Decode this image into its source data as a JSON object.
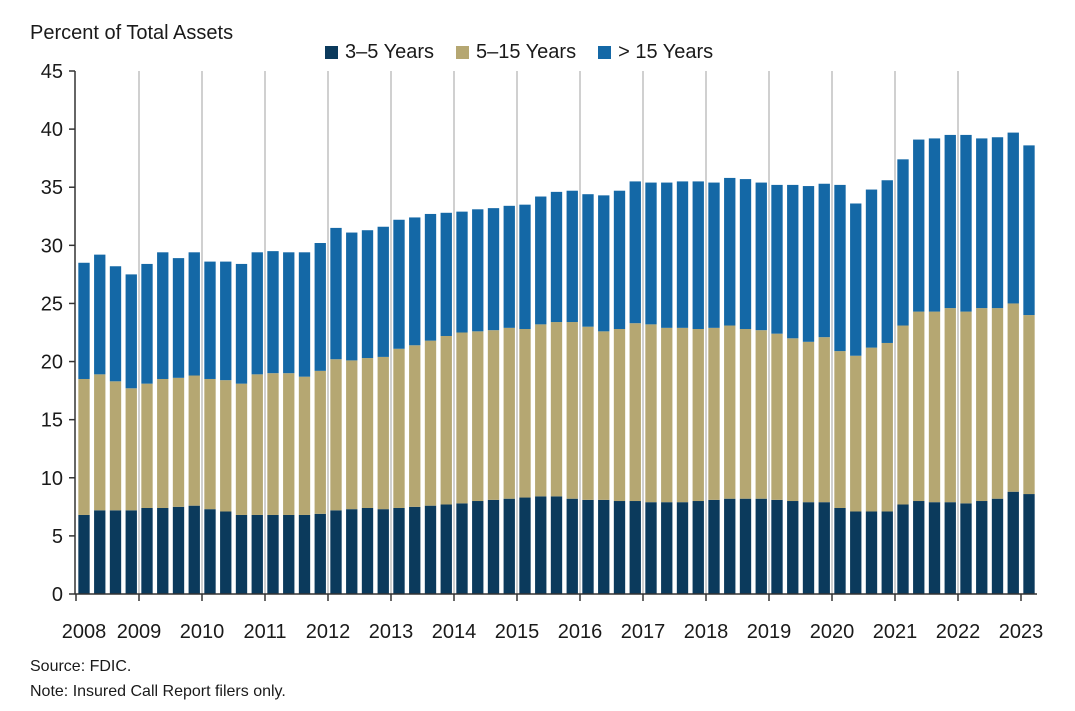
{
  "chart_data": {
    "type": "bar",
    "stacked": true,
    "ylabel": "Percent of Total Assets",
    "ylim": [
      0,
      45
    ],
    "yticks": [
      0,
      5,
      10,
      15,
      20,
      25,
      30,
      35,
      40,
      45
    ],
    "xtick_labels": [
      "2008",
      "2009",
      "2010",
      "2011",
      "2012",
      "2013",
      "2014",
      "2015",
      "2016",
      "2017",
      "2018",
      "2019",
      "2020",
      "2021",
      "2022",
      "2023"
    ],
    "x_start_year": 2008,
    "periods_per_year": 4,
    "grid": "vertical lines at each year",
    "legend_position": "top-center",
    "series": [
      {
        "name": "3–5 Years",
        "color": "#0b3a5c",
        "values": [
          6.8,
          7.2,
          7.2,
          7.2,
          7.4,
          7.4,
          7.5,
          7.6,
          7.3,
          7.1,
          6.8,
          6.8,
          6.8,
          6.8,
          6.8,
          6.9,
          7.2,
          7.3,
          7.4,
          7.3,
          7.4,
          7.5,
          7.6,
          7.7,
          7.8,
          8.0,
          8.1,
          8.2,
          8.3,
          8.4,
          8.4,
          8.2,
          8.1,
          8.1,
          8.0,
          8.0,
          7.9,
          7.9,
          7.9,
          8.0,
          8.1,
          8.2,
          8.2,
          8.2,
          8.1,
          8.0,
          7.9,
          7.9,
          7.4,
          7.1,
          7.1,
          7.1,
          7.7,
          8.0,
          7.9,
          7.9,
          7.8,
          8.0,
          8.2,
          8.8,
          8.6
        ]
      },
      {
        "name": "5–15 Years",
        "color": "#b5a772",
        "values": [
          11.7,
          11.7,
          11.1,
          10.5,
          10.7,
          11.1,
          11.1,
          11.2,
          11.2,
          11.3,
          11.3,
          12.1,
          12.2,
          12.2,
          11.9,
          12.3,
          13.0,
          12.8,
          12.9,
          13.1,
          13.7,
          13.9,
          14.2,
          14.5,
          14.7,
          14.6,
          14.6,
          14.7,
          14.5,
          14.8,
          15.0,
          15.2,
          14.9,
          14.5,
          14.8,
          15.3,
          15.3,
          15.0,
          15.0,
          14.8,
          14.8,
          14.9,
          14.6,
          14.5,
          14.3,
          14.0,
          13.8,
          14.2,
          13.5,
          13.4,
          14.1,
          14.5,
          15.4,
          16.3,
          16.4,
          16.7,
          16.5,
          16.6,
          16.4,
          16.2,
          15.4
        ]
      },
      {
        "name": "> 15 Years",
        "color": "#1468a6",
        "values": [
          10.0,
          10.3,
          9.9,
          9.8,
          10.3,
          10.9,
          10.3,
          10.6,
          10.1,
          10.2,
          10.3,
          10.5,
          10.5,
          10.4,
          10.7,
          11.0,
          11.3,
          11.0,
          11.0,
          11.2,
          11.1,
          11.0,
          10.9,
          10.6,
          10.4,
          10.5,
          10.5,
          10.5,
          10.7,
          11.0,
          11.2,
          11.3,
          11.4,
          11.7,
          11.9,
          12.2,
          12.2,
          12.5,
          12.6,
          12.7,
          12.5,
          12.7,
          12.9,
          12.7,
          12.8,
          13.2,
          13.4,
          13.2,
          14.3,
          13.1,
          13.6,
          14.0,
          14.3,
          14.8,
          14.9,
          14.9,
          15.2,
          14.6,
          14.7,
          14.7,
          14.6
        ]
      }
    ],
    "source": "Source: FDIC.",
    "note": "Note: Insured Call Report filers only."
  }
}
